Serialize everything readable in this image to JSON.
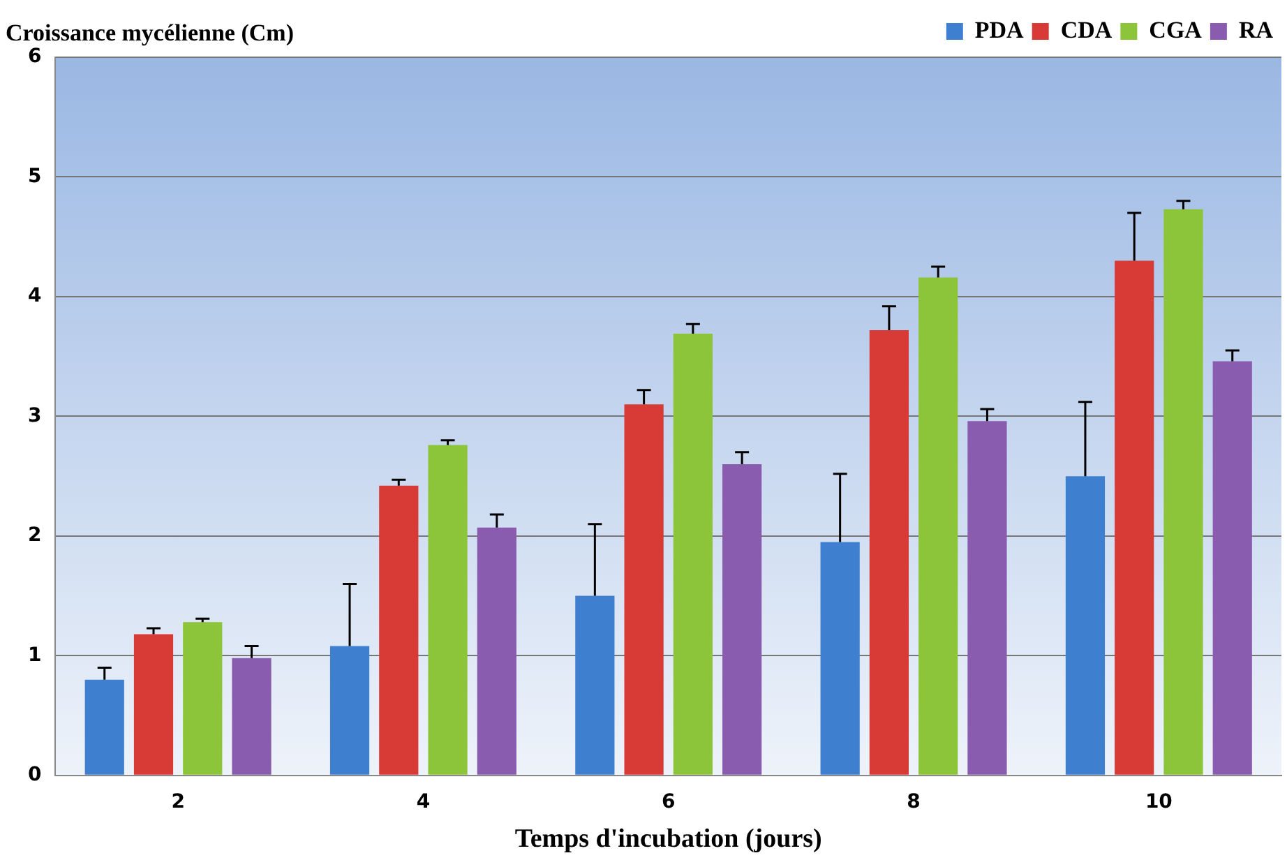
{
  "chart_data": {
    "type": "bar",
    "ylabel": "Croissance mycélienne (Cm)",
    "xlabel": "Temps d'incubation (jours)",
    "categories": [
      "2",
      "4",
      "6",
      "8",
      "10"
    ],
    "series": [
      {
        "name": "PDA",
        "color": "#3f7fcf",
        "values": [
          0.8,
          1.08,
          1.5,
          1.95,
          2.5
        ],
        "errors": [
          [
            0.8,
            0.9
          ],
          [
            1.08,
            1.6
          ],
          [
            1.5,
            2.1
          ],
          [
            1.95,
            2.52
          ],
          [
            2.5,
            3.12
          ]
        ]
      },
      {
        "name": "CDA",
        "color": "#d83a35",
        "values": [
          1.18,
          2.42,
          3.1,
          3.72,
          4.3
        ],
        "errors": [
          [
            1.18,
            1.23
          ],
          [
            2.42,
            2.47
          ],
          [
            3.1,
            3.22
          ],
          [
            3.72,
            3.92
          ],
          [
            4.3,
            4.7
          ]
        ]
      },
      {
        "name": "CGA",
        "color": "#8cc43a",
        "values": [
          1.28,
          2.76,
          3.69,
          4.16,
          4.73
        ],
        "errors": [
          [
            1.28,
            1.31
          ],
          [
            2.76,
            2.8
          ],
          [
            3.69,
            3.77
          ],
          [
            4.16,
            4.25
          ],
          [
            4.73,
            4.8
          ]
        ]
      },
      {
        "name": "RA",
        "color": "#8a5cb0",
        "values": [
          0.98,
          2.07,
          2.6,
          2.96,
          3.46
        ],
        "errors": [
          [
            0.98,
            1.08
          ],
          [
            2.07,
            2.18
          ],
          [
            2.6,
            2.7
          ],
          [
            2.96,
            3.06
          ],
          [
            3.46,
            3.55
          ]
        ]
      }
    ],
    "ylim": [
      0,
      6
    ],
    "yticks": [
      0,
      1,
      2,
      3,
      4,
      5,
      6
    ],
    "grid": "y",
    "legend": "top right"
  }
}
